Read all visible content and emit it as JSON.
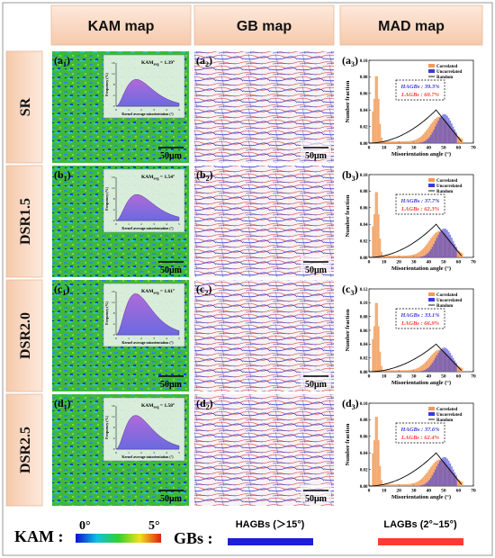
{
  "columns": [
    {
      "title": "KAM map"
    },
    {
      "title": "GB map"
    },
    {
      "title": "MAD map"
    }
  ],
  "rows": [
    {
      "name": "SR",
      "kam_label": "a",
      "gb_label": "a",
      "mad_label": "a",
      "kam_avg": "KAM",
      "kam_avg_sub": "avg",
      "kam_avg_val": " = 1.39°",
      "hagbs": "HAGBs : 39.3%",
      "lagbs": "LAGBs : 60.7%"
    },
    {
      "name": "DSR1.5",
      "kam_label": "b",
      "gb_label": "b",
      "mad_label": "b",
      "kam_avg": "KAM",
      "kam_avg_sub": "avg",
      "kam_avg_val": " = 1.54°",
      "hagbs": "HAGBs : 37.7%",
      "lagbs": "LAGBs : 62.3%"
    },
    {
      "name": "DSR2.0",
      "kam_label": "c",
      "gb_label": "c",
      "mad_label": "c",
      "kam_avg": "KAM",
      "kam_avg_sub": "avg",
      "kam_avg_val": " = 1.61°",
      "hagbs": "HAGBs : 33.1%",
      "lagbs": "LAGBs : 66.9%"
    },
    {
      "name": "DSR2.5",
      "kam_label": "d",
      "gb_label": "d",
      "mad_label": "d",
      "kam_avg": "KAM",
      "kam_avg_sub": "avg",
      "kam_avg_val": " = 1.58°",
      "hagbs": "HAGBs : 37.6%",
      "lagbs": "LAGBs : 62.4%"
    }
  ],
  "scale_bar": "50μm",
  "inset": {
    "ylabel": "Frequency (%)",
    "xlabel": "Kernel average misorientation (°)",
    "xticks": [
      "0",
      "1",
      "2",
      "3",
      "4",
      "5"
    ],
    "yticks": [
      "0",
      "4",
      "8",
      "12",
      "16"
    ]
  },
  "mad": {
    "ylabel": "Number fraction",
    "xlabel": "Misorientation angle (°)",
    "legend": [
      "Correlated",
      "Uncorrelated",
      "Random"
    ],
    "xticks": [
      "0",
      "10",
      "20",
      "30",
      "40",
      "50",
      "60",
      "70"
    ],
    "yticks": [
      "0.00",
      "0.02",
      "0.04",
      "0.06",
      "0.08",
      "0.10"
    ],
    "yticks_c": [
      "0.00",
      "0.02",
      "0.04",
      "0.06",
      "0.08",
      "0.10",
      "0.12"
    ]
  },
  "legend_bar": {
    "kam_label": "KAM :",
    "kam_min": "0°",
    "kam_max": "5°",
    "gb_label": "GBs :",
    "hagbs": "HAGBs (＞15°)",
    "lagbs": "LAGBs (2°~15°)"
  },
  "colors": {
    "header_bg": "#fbe1cf",
    "hagb": "#1f1fd6",
    "lagb": "#ff3b2f",
    "correlated": "#f39a55",
    "uncorrelated": "#3a3ad8",
    "random": "#000000"
  }
}
